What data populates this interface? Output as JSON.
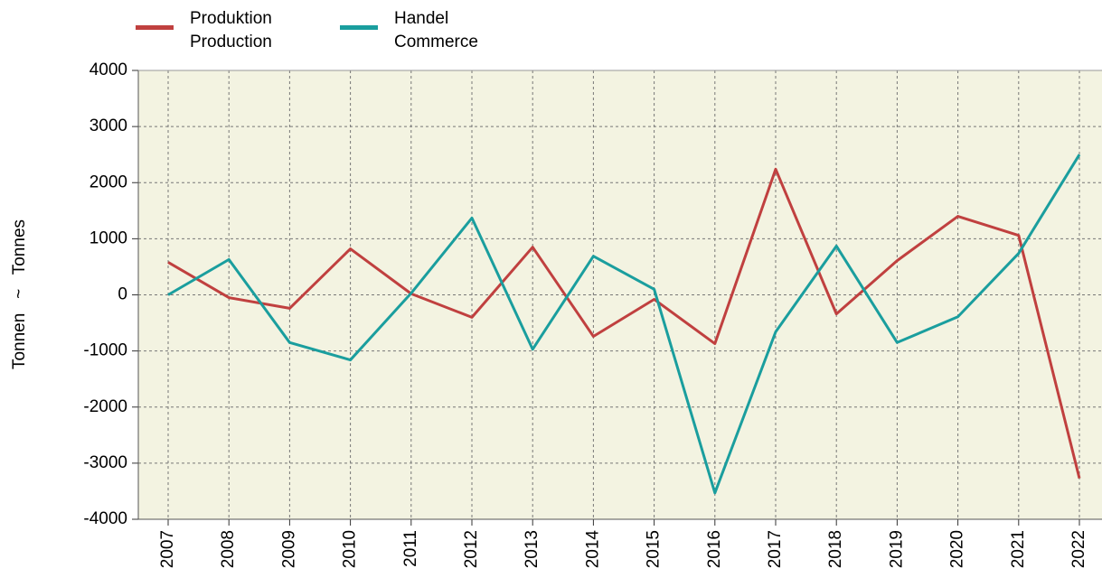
{
  "chart_data": {
    "type": "line",
    "ylabel": "Tonnen   ~   Tonnes",
    "categories": [
      "2007",
      "2008",
      "2009",
      "2010",
      "2011",
      "2012",
      "2013",
      "2014",
      "2015",
      "2016",
      "2017",
      "2018",
      "2019",
      "2020",
      "2021",
      "2022"
    ],
    "series": [
      {
        "name": "Produktion\nProduction",
        "color": "#c0403f",
        "values": [
          580,
          -50,
          -240,
          820,
          20,
          -400,
          850,
          -740,
          -80,
          -870,
          2240,
          -340,
          610,
          1400,
          1060,
          -3270
        ]
      },
      {
        "name": "Handel\nCommerce",
        "color": "#1a9e9e",
        "values": [
          0,
          630,
          -850,
          -1160,
          30,
          1370,
          -970,
          690,
          100,
          -3530,
          -660,
          870,
          -850,
          -390,
          740,
          2500
        ]
      }
    ],
    "ylim": [
      -4000,
      4000
    ],
    "yticks": [
      -4000,
      -3000,
      -2000,
      -1000,
      0,
      1000,
      2000,
      3000,
      4000
    ],
    "grid": true,
    "legend": "top-left",
    "plot_background": "#f3f3e1"
  }
}
